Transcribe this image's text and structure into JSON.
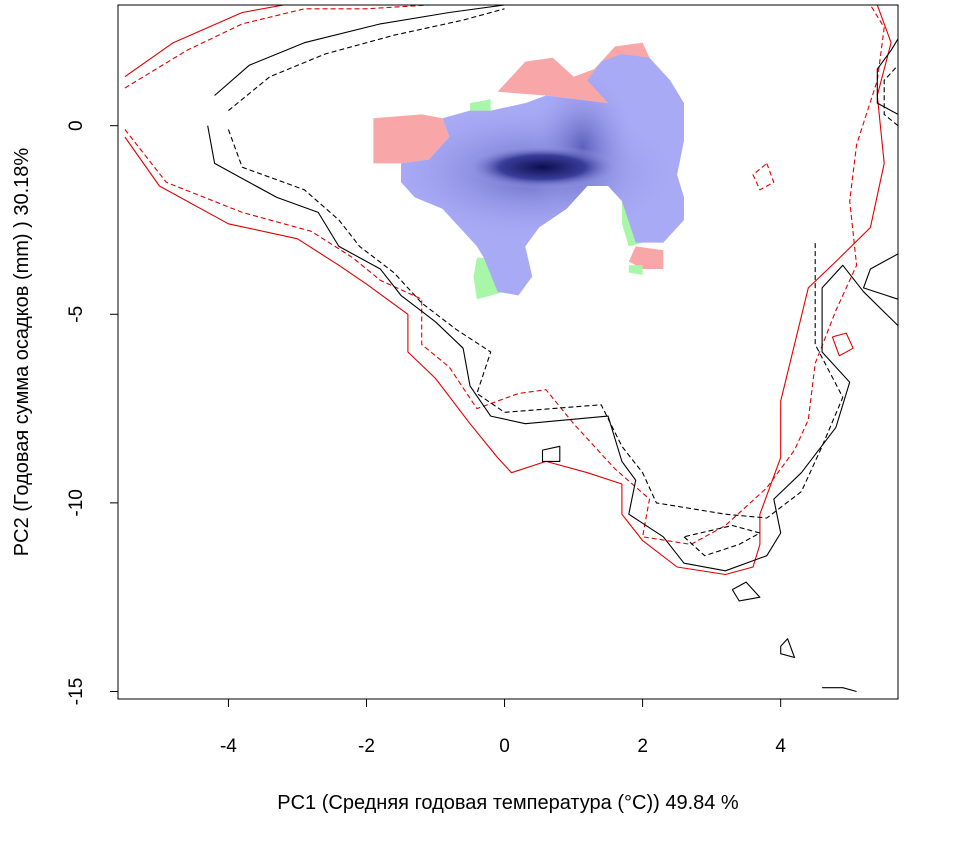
{
  "chart_data": {
    "type": "contour-density",
    "title": "",
    "xlabel": "PC1 (Средняя годовая температура (°C)) 49.84 %",
    "ylabel": "PC2 (Годовая сумма осадков  (mm) ) 30.18%",
    "xlim": [
      -5.6,
      5.7
    ],
    "ylim": [
      -15.2,
      3.2
    ],
    "xticks": [
      -4,
      -2,
      0,
      2,
      4
    ],
    "yticks": [
      0,
      -5,
      -10,
      -15
    ],
    "grid": false,
    "legend": "none",
    "colors": {
      "overlap_gradient_light": "#a8aaf6",
      "overlap_gradient_dark": "#0c0e50",
      "only_series_a": "#f9a6a8",
      "only_series_b": "#a8f7a8",
      "contour_a": "#e00000",
      "contour_b": "#000000"
    },
    "contours": [
      {
        "color": "red",
        "style": "solid",
        "points": [
          [
            -5.5,
            1.3
          ],
          [
            -4.8,
            2.2
          ],
          [
            -3.8,
            3.0
          ],
          [
            -3.2,
            3.2
          ],
          [
            -2.2,
            3.3
          ],
          [
            -1.5,
            3.4
          ]
        ]
      },
      {
        "color": "red",
        "style": "solid",
        "points": [
          [
            -5.5,
            -0.3
          ],
          [
            -5.0,
            -1.6
          ],
          [
            -4.0,
            -2.6
          ],
          [
            -3.0,
            -3.0
          ],
          [
            -2.4,
            -3.7
          ],
          [
            -2.0,
            -4.2
          ],
          [
            -1.4,
            -5.0
          ],
          [
            -1.4,
            -6.0
          ],
          [
            -1.0,
            -6.7
          ],
          [
            -0.5,
            -7.9
          ],
          [
            -0.1,
            -8.8
          ],
          [
            0.1,
            -9.2
          ],
          [
            0.6,
            -8.9
          ],
          [
            1.2,
            -9.2
          ],
          [
            1.7,
            -9.5
          ],
          [
            1.7,
            -10.3
          ],
          [
            2.0,
            -11.0
          ],
          [
            2.5,
            -11.7
          ],
          [
            3.2,
            -11.9
          ],
          [
            3.6,
            -11.7
          ],
          [
            3.7,
            -11.1
          ],
          [
            3.7,
            -10.3
          ],
          [
            4.0,
            -8.8
          ],
          [
            4.0,
            -7.3
          ],
          [
            4.2,
            -5.8
          ],
          [
            4.4,
            -4.3
          ],
          [
            4.8,
            -3.6
          ],
          [
            5.3,
            -2.7
          ],
          [
            5.5,
            -1.0
          ],
          [
            5.4,
            0.8
          ],
          [
            5.6,
            2.2
          ],
          [
            5.4,
            3.2
          ]
        ]
      },
      {
        "color": "red",
        "style": "dashed",
        "points": [
          [
            -5.5,
            1.0
          ],
          [
            -4.6,
            2.0
          ],
          [
            -3.8,
            2.7
          ],
          [
            -2.9,
            3.1
          ],
          [
            -2.0,
            3.1
          ],
          [
            -1.1,
            3.2
          ]
        ]
      },
      {
        "color": "red",
        "style": "dashed",
        "points": [
          [
            -5.5,
            -0.1
          ],
          [
            -4.9,
            -1.5
          ],
          [
            -3.8,
            -2.3
          ],
          [
            -2.8,
            -2.8
          ],
          [
            -2.2,
            -3.5
          ],
          [
            -1.8,
            -4.1
          ],
          [
            -1.2,
            -4.6
          ],
          [
            -1.2,
            -5.8
          ],
          [
            -0.8,
            -6.4
          ],
          [
            -0.4,
            -7.5
          ],
          [
            0.2,
            -7.1
          ],
          [
            0.6,
            -7.0
          ],
          [
            1.0,
            -7.9
          ],
          [
            1.6,
            -9.1
          ],
          [
            2.1,
            -9.9
          ],
          [
            2.0,
            -10.9
          ],
          [
            2.7,
            -11.1
          ],
          [
            3.2,
            -10.6
          ],
          [
            3.8,
            -9.6
          ],
          [
            4.2,
            -8.6
          ],
          [
            4.4,
            -7.8
          ],
          [
            4.5,
            -6.3
          ],
          [
            4.8,
            -4.9
          ],
          [
            5.1,
            -3.7
          ],
          [
            5.0,
            -2.0
          ],
          [
            5.1,
            -0.5
          ],
          [
            5.4,
            1.2
          ],
          [
            5.5,
            2.6
          ],
          [
            5.3,
            3.2
          ]
        ]
      },
      {
        "color": "red",
        "style": "dashed",
        "points": [
          [
            3.8,
            -1.0
          ],
          [
            3.9,
            -1.5
          ],
          [
            3.7,
            -1.7
          ],
          [
            3.6,
            -1.3
          ],
          [
            3.8,
            -1.0
          ]
        ]
      },
      {
        "color": "red",
        "style": "solid",
        "points": [
          [
            4.75,
            -5.6
          ],
          [
            4.95,
            -5.5
          ],
          [
            5.05,
            -5.9
          ],
          [
            4.85,
            -6.1
          ],
          [
            4.75,
            -5.6
          ]
        ]
      },
      {
        "color": "black",
        "style": "solid",
        "points": [
          [
            -4.2,
            0.8
          ],
          [
            -3.7,
            1.6
          ],
          [
            -2.9,
            2.2
          ],
          [
            -1.8,
            2.7
          ],
          [
            -0.8,
            3.0
          ],
          [
            0.0,
            3.2
          ]
        ]
      },
      {
        "color": "black",
        "style": "solid",
        "points": [
          [
            -4.3,
            0.0
          ],
          [
            -4.2,
            -1.0
          ],
          [
            -3.3,
            -1.9
          ],
          [
            -2.7,
            -2.3
          ],
          [
            -2.4,
            -3.2
          ],
          [
            -1.8,
            -3.8
          ],
          [
            -1.5,
            -4.5
          ],
          [
            -1.0,
            -5.2
          ],
          [
            -0.6,
            -5.9
          ],
          [
            -0.5,
            -6.9
          ],
          [
            -0.2,
            -7.7
          ],
          [
            0.3,
            -7.9
          ],
          [
            1.5,
            -7.7
          ],
          [
            1.7,
            -8.9
          ],
          [
            1.9,
            -9.4
          ],
          [
            1.8,
            -10.3
          ],
          [
            2.3,
            -10.9
          ],
          [
            2.6,
            -11.6
          ],
          [
            3.2,
            -11.8
          ],
          [
            3.8,
            -11.4
          ],
          [
            4.0,
            -10.8
          ],
          [
            3.9,
            -9.9
          ],
          [
            4.3,
            -9.2
          ],
          [
            4.8,
            -8.0
          ],
          [
            5.0,
            -6.8
          ],
          [
            4.6,
            -6.0
          ],
          [
            4.6,
            -4.3
          ],
          [
            4.9,
            -3.7
          ],
          [
            5.2,
            -4.4
          ],
          [
            5.7,
            -5.3
          ]
        ]
      },
      {
        "color": "black",
        "style": "dashed",
        "points": [
          [
            -4.0,
            0.4
          ],
          [
            -3.4,
            1.3
          ],
          [
            -2.6,
            1.9
          ],
          [
            -1.6,
            2.4
          ],
          [
            -0.6,
            2.8
          ],
          [
            0.0,
            3.1
          ]
        ]
      },
      {
        "color": "black",
        "style": "dashed",
        "points": [
          [
            -4.0,
            -0.1
          ],
          [
            -3.8,
            -1.1
          ],
          [
            -2.9,
            -1.7
          ],
          [
            -2.4,
            -2.5
          ],
          [
            -2.1,
            -3.2
          ],
          [
            -1.6,
            -3.9
          ],
          [
            -1.2,
            -4.7
          ],
          [
            -0.7,
            -5.4
          ],
          [
            -0.2,
            -6.0
          ],
          [
            -0.4,
            -7.1
          ],
          [
            0.0,
            -7.6
          ],
          [
            1.4,
            -7.4
          ],
          [
            1.7,
            -8.5
          ],
          [
            2.0,
            -9.2
          ],
          [
            2.2,
            -10.0
          ],
          [
            3.2,
            -10.3
          ],
          [
            3.8,
            -10.4
          ],
          [
            4.3,
            -9.7
          ],
          [
            4.6,
            -8.5
          ],
          [
            4.9,
            -7.2
          ],
          [
            4.5,
            -5.8
          ],
          [
            4.5,
            -4.3
          ],
          [
            4.5,
            -3.1
          ]
        ]
      },
      {
        "color": "black",
        "style": "dashed",
        "points": [
          [
            2.6,
            -10.9
          ],
          [
            2.9,
            -11.4
          ],
          [
            3.4,
            -11.1
          ],
          [
            3.7,
            -10.8
          ],
          [
            3.3,
            -10.6
          ],
          [
            2.6,
            -10.9
          ]
        ]
      },
      {
        "color": "black",
        "style": "solid",
        "points": [
          [
            5.7,
            0.3
          ],
          [
            5.4,
            0.6
          ],
          [
            5.4,
            1.5
          ],
          [
            5.6,
            2.0
          ],
          [
            5.7,
            2.3
          ]
        ]
      },
      {
        "color": "black",
        "style": "dashed",
        "points": [
          [
            5.7,
            0.0
          ],
          [
            5.5,
            0.3
          ],
          [
            5.5,
            1.2
          ],
          [
            5.7,
            1.6
          ]
        ]
      },
      {
        "color": "black",
        "style": "solid",
        "points": [
          [
            5.7,
            -3.4
          ],
          [
            5.3,
            -3.8
          ],
          [
            5.2,
            -4.3
          ],
          [
            5.7,
            -4.6
          ]
        ]
      },
      {
        "color": "black",
        "style": "solid",
        "points": [
          [
            0.55,
            -8.6
          ],
          [
            0.8,
            -8.5
          ],
          [
            0.8,
            -8.9
          ],
          [
            0.55,
            -8.9
          ],
          [
            0.55,
            -8.6
          ]
        ]
      },
      {
        "color": "black",
        "style": "solid",
        "points": [
          [
            3.3,
            -12.3
          ],
          [
            3.5,
            -12.1
          ],
          [
            3.7,
            -12.5
          ],
          [
            3.4,
            -12.6
          ],
          [
            3.3,
            -12.3
          ]
        ]
      },
      {
        "color": "black",
        "style": "solid",
        "points": [
          [
            4.0,
            -13.8
          ],
          [
            4.1,
            -13.6
          ],
          [
            4.2,
            -14.1
          ],
          [
            4.0,
            -14.0
          ],
          [
            4.0,
            -13.8
          ]
        ]
      },
      {
        "color": "black",
        "style": "solid",
        "points": [
          [
            4.6,
            -14.9
          ],
          [
            4.9,
            -14.9
          ],
          [
            5.1,
            -15.0
          ]
        ]
      }
    ],
    "density_regions": [
      {
        "category": "only_series_a",
        "points": [
          [
            -1.9,
            0.2
          ],
          [
            -1.2,
            0.3
          ],
          [
            -0.9,
            0.2
          ],
          [
            -0.8,
            -0.3
          ],
          [
            -1.1,
            -0.9
          ],
          [
            -1.5,
            -1.0
          ],
          [
            -1.9,
            -1.0
          ],
          [
            -1.9,
            0.2
          ]
        ]
      },
      {
        "category": "only_series_a",
        "points": [
          [
            -0.1,
            0.9
          ],
          [
            0.3,
            1.7
          ],
          [
            0.7,
            1.8
          ],
          [
            1.0,
            1.3
          ],
          [
            1.3,
            1.5
          ],
          [
            1.6,
            2.1
          ],
          [
            2.0,
            2.2
          ],
          [
            2.1,
            1.8
          ],
          [
            1.5,
            0.6
          ],
          [
            0.6,
            0.8
          ],
          [
            -0.1,
            0.9
          ]
        ]
      },
      {
        "category": "only_series_a",
        "points": [
          [
            1.9,
            -3.2
          ],
          [
            2.3,
            -3.3
          ],
          [
            2.3,
            -3.8
          ],
          [
            2.0,
            -3.8
          ],
          [
            1.8,
            -3.6
          ],
          [
            1.9,
            -3.2
          ]
        ]
      },
      {
        "category": "only_series_b",
        "points": [
          [
            -0.5,
            0.6
          ],
          [
            -0.2,
            0.7
          ],
          [
            -0.2,
            0.4
          ],
          [
            -0.5,
            0.4
          ],
          [
            -0.5,
            0.6
          ]
        ]
      },
      {
        "category": "only_series_b",
        "points": [
          [
            -0.4,
            -3.5
          ],
          [
            -0.1,
            -3.5
          ],
          [
            0.0,
            -4.4
          ],
          [
            -0.4,
            -4.6
          ],
          [
            -0.45,
            -4.0
          ],
          [
            -0.4,
            -3.5
          ]
        ]
      },
      {
        "category": "only_series_b",
        "points": [
          [
            1.7,
            -2.0
          ],
          [
            1.9,
            -2.0
          ],
          [
            2.0,
            -3.1
          ],
          [
            1.8,
            -3.2
          ],
          [
            1.7,
            -2.6
          ],
          [
            1.7,
            -2.0
          ]
        ]
      },
      {
        "category": "only_series_b",
        "points": [
          [
            1.8,
            -3.7
          ],
          [
            2.0,
            -3.7
          ],
          [
            2.0,
            -3.95
          ],
          [
            1.8,
            -3.9
          ],
          [
            1.8,
            -3.7
          ]
        ]
      },
      {
        "category": "overlap",
        "points": [
          [
            -1.5,
            -1.0
          ],
          [
            -1.1,
            -0.9
          ],
          [
            -0.8,
            -0.3
          ],
          [
            -0.9,
            0.2
          ],
          [
            -0.5,
            0.4
          ],
          [
            -0.2,
            0.4
          ],
          [
            0.3,
            0.6
          ],
          [
            0.6,
            0.8
          ],
          [
            1.5,
            0.6
          ],
          [
            1.2,
            1.2
          ],
          [
            1.4,
            1.7
          ],
          [
            1.7,
            1.9
          ],
          [
            2.1,
            1.8
          ],
          [
            2.4,
            1.2
          ],
          [
            2.6,
            0.6
          ],
          [
            2.6,
            -0.4
          ],
          [
            2.5,
            -1.3
          ],
          [
            2.6,
            -1.9
          ],
          [
            2.6,
            -2.5
          ],
          [
            2.3,
            -3.1
          ],
          [
            1.9,
            -3.1
          ],
          [
            1.7,
            -2.0
          ],
          [
            1.5,
            -1.6
          ],
          [
            1.2,
            -1.6
          ],
          [
            0.9,
            -2.2
          ],
          [
            0.5,
            -2.7
          ],
          [
            0.3,
            -3.2
          ],
          [
            0.4,
            -4.0
          ],
          [
            0.2,
            -4.5
          ],
          [
            -0.1,
            -4.4
          ],
          [
            -0.3,
            -3.5
          ],
          [
            -0.4,
            -3.2
          ],
          [
            -0.6,
            -2.8
          ],
          [
            -0.9,
            -2.2
          ],
          [
            -1.3,
            -1.9
          ],
          [
            -1.5,
            -1.5
          ],
          [
            -1.5,
            -1.0
          ]
        ]
      }
    ],
    "density_peak": {
      "x": 0.55,
      "y": -1.1
    }
  }
}
